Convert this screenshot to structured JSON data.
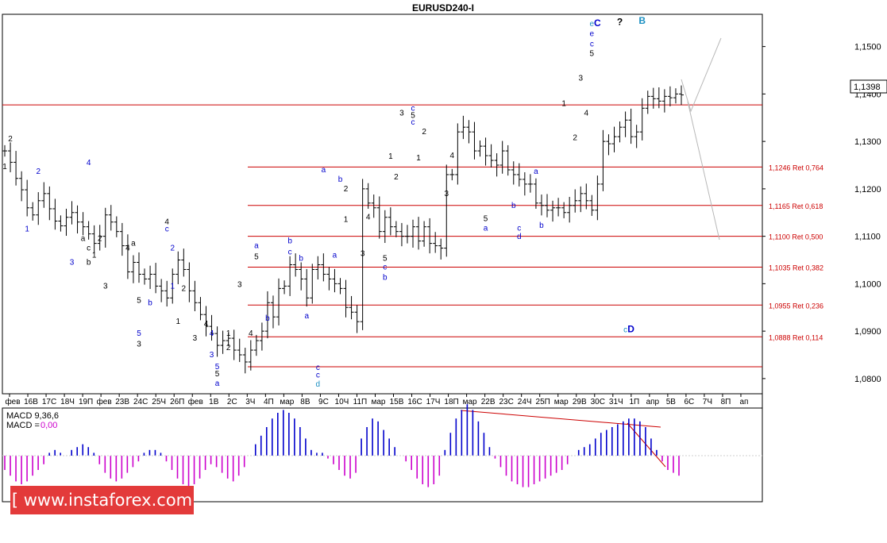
{
  "title": "EURUSD240-I",
  "current_price": "1,1398",
  "y_ticks": [
    "1,1500",
    "1,1400",
    "1,1300",
    "1,1200",
    "1,1100",
    "1,1000",
    "1,0900",
    "1,0800"
  ],
  "x_ticks": [
    "фев",
    "16В",
    "17С",
    "18Ч",
    "19П",
    "фев",
    "23В",
    "24С",
    "25Ч",
    "26П",
    "фев",
    "1В",
    "2С",
    "3Ч",
    "4П",
    "мар",
    "8В",
    "9С",
    "10Ч",
    "11П",
    "мар",
    "15В",
    "16С",
    "17Ч",
    "18П",
    "мар",
    "22В",
    "23С",
    "24Ч",
    "25П",
    "мар",
    "29В",
    "30С",
    "31Ч",
    "1П",
    "апр",
    "5В",
    "6С",
    "7Ч",
    "8П",
    "ап"
  ],
  "macd_label": "MACD 9,36,6",
  "macd_value_label": "MACD =",
  "macd_value": "0,00",
  "watermark": "[ www.instaforex.com ]",
  "colors": {
    "candle": "#000000",
    "fib": "#cc0000",
    "macd_pos": "#0000cc",
    "macd_neg": "#cc00cc",
    "blue_label": "#0000cc",
    "cyan_label": "#1a8fc2",
    "arrow": "#b8b8b8"
  },
  "chart_data": {
    "type": "candlestick",
    "title": "EURUSD240-I",
    "ylim": [
      1.0768,
      1.1568
    ],
    "close_series": [
      1.128,
      1.1256,
      1.1222,
      1.1198,
      1.116,
      1.1145,
      1.1175,
      1.119,
      1.1158,
      1.1132,
      1.1122,
      1.114,
      1.115,
      1.113,
      1.112,
      1.1105,
      1.1085,
      1.11,
      1.1145,
      1.113,
      1.111,
      1.108,
      1.1025,
      1.1045,
      1.102,
      1.101,
      1.102,
      1.0995,
      1.0985,
      1.097,
      1.102,
      1.105,
      1.103,
      1.0985,
      1.096,
      1.0935,
      1.091,
      1.0895,
      1.087,
      1.088,
      1.0885,
      1.086,
      1.085,
      1.0835,
      1.086,
      1.088,
      1.09,
      1.096,
      1.093,
      1.099,
      1.0995,
      1.104,
      1.103,
      1.101,
      1.097,
      1.103,
      1.104,
      1.102,
      1.101,
      1.1,
      1.099,
      1.095,
      1.094,
      1.092,
      1.12,
      1.117,
      1.116,
      1.111,
      1.114,
      1.112,
      1.111,
      1.11,
      1.11,
      1.112,
      1.109,
      1.112,
      1.1085,
      1.108,
      1.1075,
      1.123,
      1.123,
      1.132,
      1.133,
      1.132,
      1.128,
      1.129,
      1.127,
      1.126,
      1.125,
      1.128,
      1.124,
      1.123,
      1.122,
      1.121,
      1.121,
      1.117,
      1.1165,
      1.1155,
      1.116,
      1.116,
      1.115,
      1.1165,
      1.1175,
      1.119,
      1.1175,
      1.1155,
      1.121,
      1.13,
      1.1295,
      1.131,
      1.133,
      1.1345,
      1.131,
      1.132,
      1.137,
      1.1395,
      1.139,
      1.1385,
      1.1395,
      1.1392,
      1.14,
      1.1398
    ],
    "fib_levels": [
      {
        "label": "1,1246 Ret 0,764",
        "value": 1.1246
      },
      {
        "label": "1,1165 Ret 0,618",
        "value": 1.1165
      },
      {
        "label": "1,1100 Ret 0,500",
        "value": 1.11
      },
      {
        "label": "1,1035 Ret 0,382",
        "value": 1.1035
      },
      {
        "label": "1,0955 Ret 0,236",
        "value": 1.0955
      },
      {
        "label": "1,0888 Ret 0,114",
        "value": 1.0888
      }
    ],
    "base_level": 1.0825,
    "current_level": 1.1377,
    "macd_histogram": [
      -0.5,
      -0.7,
      -0.9,
      -1.0,
      -0.9,
      -0.7,
      -0.5,
      -0.3,
      0.1,
      0.2,
      0.1,
      0.0,
      0.2,
      0.3,
      0.4,
      0.3,
      0.1,
      -0.3,
      -0.6,
      -0.8,
      -0.9,
      -0.8,
      -0.6,
      -0.4,
      -0.2,
      0.1,
      0.2,
      0.2,
      0.1,
      -0.2,
      -0.5,
      -0.8,
      -1.0,
      -1.1,
      -1.0,
      -0.8,
      -0.5,
      -0.3,
      -0.4,
      -0.6,
      -0.8,
      -0.9,
      -0.7,
      -0.4,
      0.0,
      0.4,
      0.7,
      1.0,
      1.3,
      1.5,
      1.6,
      1.5,
      1.3,
      1.0,
      0.6,
      0.2,
      0.1,
      0.1,
      -0.1,
      -0.3,
      -0.5,
      -0.7,
      -0.8,
      -0.6,
      0.6,
      1.0,
      1.3,
      1.2,
      0.9,
      0.6,
      0.3,
      0.0,
      -0.2,
      -0.5,
      -0.8,
      -1.0,
      -1.1,
      -1.0,
      -0.7,
      0.2,
      0.8,
      1.3,
      1.6,
      1.8,
      1.6,
      1.2,
      0.8,
      0.3,
      -0.1,
      -0.4,
      -0.7,
      -0.9,
      -1.0,
      -1.1,
      -1.1,
      -1.0,
      -0.9,
      -0.8,
      -0.7,
      -0.6,
      -0.5,
      -0.3,
      0.0,
      0.2,
      0.3,
      0.4,
      0.6,
      0.8,
      0.9,
      1.0,
      1.1,
      1.2,
      1.3,
      1.3,
      1.2,
      1.0,
      0.6,
      0.2,
      -0.2,
      -0.5,
      -0.6,
      -0.7
    ],
    "wave_labels": [
      {
        "i": 0,
        "v": 1.1242,
        "t": "1",
        "c": "black"
      },
      {
        "i": 1,
        "v": 1.13,
        "t": "2",
        "c": "black"
      },
      {
        "i": 4,
        "v": 1.111,
        "t": "1",
        "c": "blue"
      },
      {
        "i": 6,
        "v": 1.1232,
        "t": "2",
        "c": "blue"
      },
      {
        "i": 14,
        "v": 1.109,
        "t": "a",
        "c": "black"
      },
      {
        "i": 15,
        "v": 1.107,
        "t": "c",
        "c": "black"
      },
      {
        "i": 16,
        "v": 1.1055,
        "t": "1",
        "c": "black"
      },
      {
        "i": 17,
        "v": 1.109,
        "t": "2",
        "c": "black"
      },
      {
        "i": 15,
        "v": 1.125,
        "t": "4",
        "c": "blue"
      },
      {
        "i": 12,
        "v": 1.104,
        "t": "3",
        "c": "blue"
      },
      {
        "i": 15,
        "v": 1.104,
        "t": "b",
        "c": "black"
      },
      {
        "i": 18,
        "v": 1.099,
        "t": "3",
        "c": "black"
      },
      {
        "i": 22,
        "v": 1.107,
        "t": "4",
        "c": "black"
      },
      {
        "i": 23,
        "v": 1.108,
        "t": "a",
        "c": "black"
      },
      {
        "i": 24,
        "v": 1.096,
        "t": "5",
        "c": "black"
      },
      {
        "i": 24,
        "v": 1.089,
        "t": "5",
        "c": "blue"
      },
      {
        "i": 24,
        "v": 1.0868,
        "t": "3",
        "c": "black"
      },
      {
        "i": 26,
        "v": 1.0955,
        "t": "b",
        "c": "blue"
      },
      {
        "i": 29,
        "v": 1.1125,
        "t": "4",
        "c": "black"
      },
      {
        "i": 29,
        "v": 1.111,
        "t": "c",
        "c": "blue"
      },
      {
        "i": 30,
        "v": 1.107,
        "t": "2",
        "c": "blue"
      },
      {
        "i": 30,
        "v": 1.099,
        "t": "1",
        "c": "blue"
      },
      {
        "i": 32,
        "v": 1.0985,
        "t": "2",
        "c": "black"
      },
      {
        "i": 31,
        "v": 1.0915,
        "t": "1",
        "c": "black"
      },
      {
        "i": 34,
        "v": 1.088,
        "t": "3",
        "c": "black"
      },
      {
        "i": 36,
        "v": 1.091,
        "t": "4",
        "c": "black"
      },
      {
        "i": 37,
        "v": 1.089,
        "t": "4",
        "c": "blue"
      },
      {
        "i": 37,
        "v": 1.0845,
        "t": "3",
        "c": "blue"
      },
      {
        "i": 38,
        "v": 1.082,
        "t": "5",
        "c": "blue"
      },
      {
        "i": 38,
        "v": 1.0805,
        "t": "5",
        "c": "black"
      },
      {
        "i": 38,
        "v": 1.0785,
        "t": "a",
        "c": "blue"
      },
      {
        "i": 40,
        "v": 1.089,
        "t": "1",
        "c": "black"
      },
      {
        "i": 40,
        "v": 1.086,
        "t": "2",
        "c": "black"
      },
      {
        "i": 42,
        "v": 1.0993,
        "t": "3",
        "c": "black"
      },
      {
        "i": 44,
        "v": 1.089,
        "t": "4",
        "c": "black"
      },
      {
        "i": 45,
        "v": 1.1075,
        "t": "a",
        "c": "blue"
      },
      {
        "i": 45,
        "v": 1.1052,
        "t": "5",
        "c": "black"
      },
      {
        "i": 47,
        "v": 1.0922,
        "t": "b",
        "c": "blue"
      },
      {
        "i": 51,
        "v": 1.1085,
        "t": "b",
        "c": "blue"
      },
      {
        "i": 51,
        "v": 1.1062,
        "t": "c",
        "c": "blue"
      },
      {
        "i": 53,
        "v": 1.1048,
        "t": "b",
        "c": "blue"
      },
      {
        "i": 54,
        "v": 1.0927,
        "t": "a",
        "c": "blue"
      },
      {
        "i": 56,
        "v": 1.0818,
        "t": "c",
        "c": "blue"
      },
      {
        "i": 56,
        "v": 1.0802,
        "t": "c",
        "c": "blue"
      },
      {
        "i": 56,
        "v": 1.0783,
        "t": "d",
        "c": "cyan"
      },
      {
        "i": 57,
        "v": 1.1235,
        "t": "a",
        "c": "blue"
      },
      {
        "i": 60,
        "v": 1.1215,
        "t": "b",
        "c": "blue"
      },
      {
        "i": 61,
        "v": 1.1195,
        "t": "2",
        "c": "black"
      },
      {
        "i": 61,
        "v": 1.113,
        "t": "1",
        "c": "black"
      },
      {
        "i": 59,
        "v": 1.1055,
        "t": "a",
        "c": "blue"
      },
      {
        "i": 65,
        "v": 1.1135,
        "t": "4",
        "c": "black"
      },
      {
        "i": 64,
        "v": 1.1058,
        "t": "3",
        "c": "black"
      },
      {
        "i": 68,
        "v": 1.1048,
        "t": "5",
        "c": "black"
      },
      {
        "i": 68,
        "v": 1.103,
        "t": "c",
        "c": "blue"
      },
      {
        "i": 68,
        "v": 1.1008,
        "t": "b",
        "c": "blue"
      },
      {
        "i": 69,
        "v": 1.1263,
        "t": "1",
        "c": "black"
      },
      {
        "i": 70,
        "v": 1.122,
        "t": "2",
        "c": "black"
      },
      {
        "i": 71,
        "v": 1.1355,
        "t": "3",
        "c": "black"
      },
      {
        "i": 73,
        "v": 1.1365,
        "t": "c",
        "c": "blue"
      },
      {
        "i": 73,
        "v": 1.135,
        "t": "5",
        "c": "black"
      },
      {
        "i": 73,
        "v": 1.1335,
        "t": "c",
        "c": "blue"
      },
      {
        "i": 75,
        "v": 1.1315,
        "t": "2",
        "c": "black"
      },
      {
        "i": 74,
        "v": 1.126,
        "t": "1",
        "c": "black"
      },
      {
        "i": 80,
        "v": 1.1265,
        "t": "4",
        "c": "black"
      },
      {
        "i": 79,
        "v": 1.1185,
        "t": "3",
        "c": "black"
      },
      {
        "i": 86,
        "v": 1.1132,
        "t": "5",
        "c": "black"
      },
      {
        "i": 86,
        "v": 1.1112,
        "t": "a",
        "c": "blue"
      },
      {
        "i": 91,
        "v": 1.116,
        "t": "b",
        "c": "blue"
      },
      {
        "i": 92,
        "v": 1.1112,
        "t": "c",
        "c": "blue"
      },
      {
        "i": 92,
        "v": 1.1094,
        "t": "d",
        "c": "blue"
      },
      {
        "i": 95,
        "v": 1.1232,
        "t": "a",
        "c": "blue"
      },
      {
        "i": 96,
        "v": 1.1118,
        "t": "b",
        "c": "blue"
      },
      {
        "i": 100,
        "v": 1.1375,
        "t": "1",
        "c": "black"
      },
      {
        "i": 102,
        "v": 1.1303,
        "t": "2",
        "c": "black"
      },
      {
        "i": 103,
        "v": 1.1428,
        "t": "3",
        "c": "black"
      },
      {
        "i": 104,
        "v": 1.1355,
        "t": "4",
        "c": "black"
      },
      {
        "i": 105,
        "v": 1.148,
        "t": "5",
        "c": "black"
      },
      {
        "i": 105,
        "v": 1.15,
        "t": "c",
        "c": "blue"
      },
      {
        "i": 105,
        "v": 1.1522,
        "t": "e",
        "c": "blue"
      },
      {
        "i": 105,
        "v": 1.1543,
        "t": "e",
        "c": "cyan"
      },
      {
        "i": 106,
        "v": 1.1543,
        "t": "C",
        "c": "blue"
      },
      {
        "i": 110,
        "v": 1.1545,
        "t": "?",
        "c": "black"
      },
      {
        "i": 114,
        "v": 1.1548,
        "t": "B",
        "c": "cyan"
      },
      {
        "i": 111,
        "v": 1.0898,
        "t": "c",
        "c": "cyan"
      },
      {
        "i": 112,
        "v": 1.0898,
        "t": "D",
        "c": "blue"
      }
    ]
  }
}
